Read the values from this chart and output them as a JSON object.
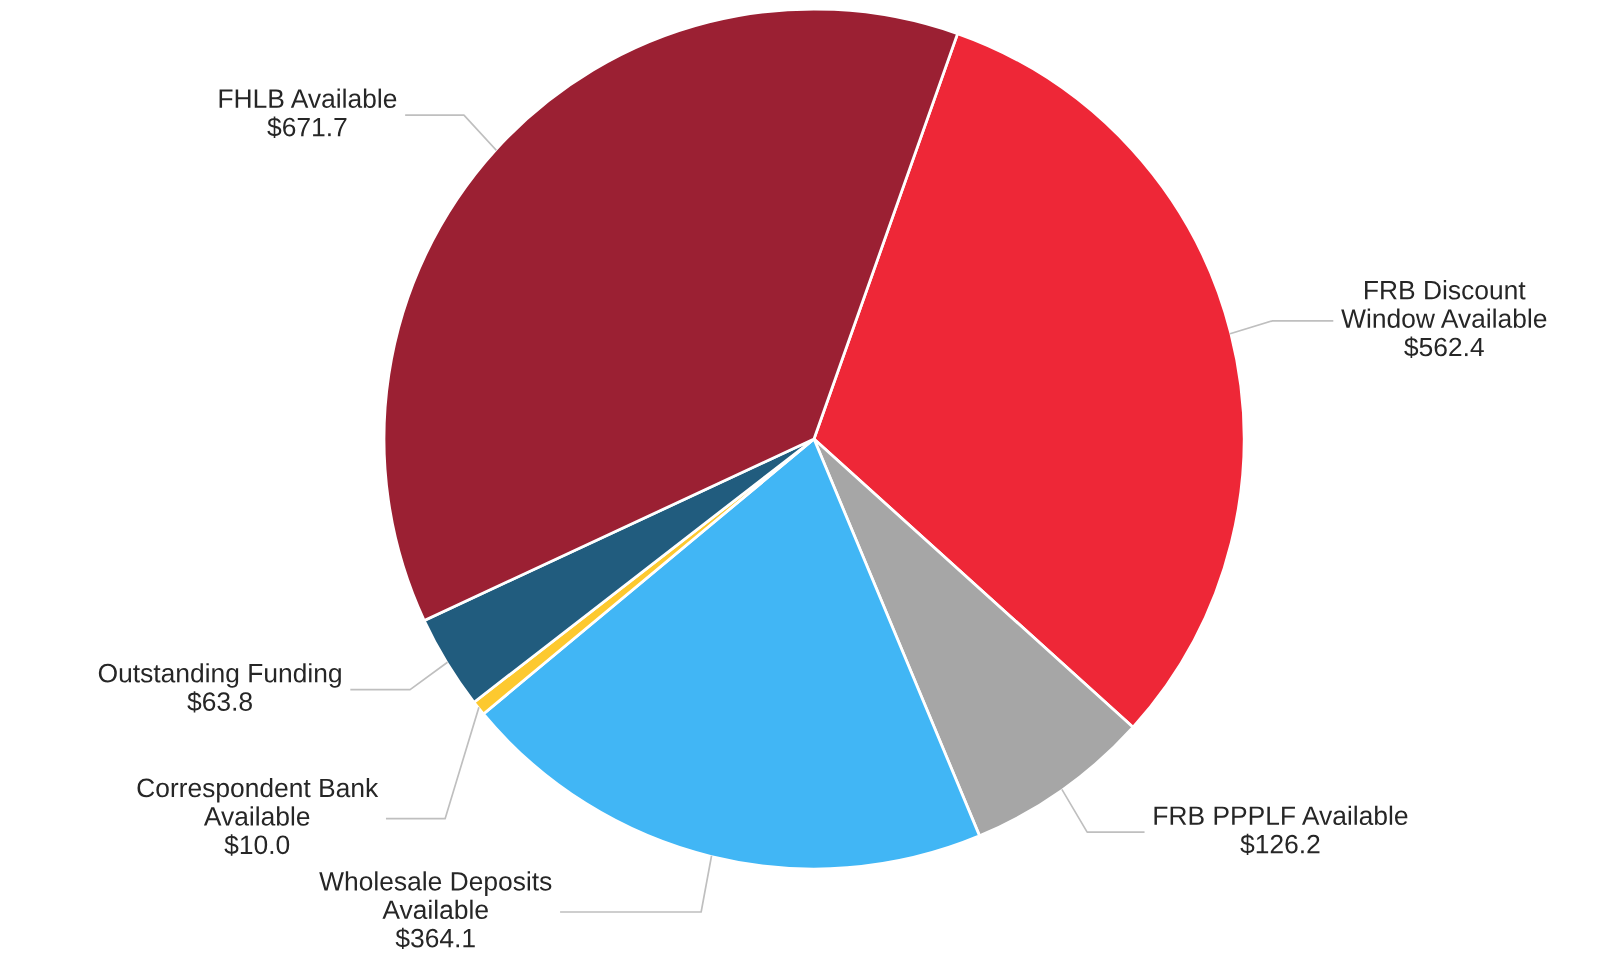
{
  "chart_data": {
    "type": "pie",
    "categories": [
      "FRB Discount\nWindow Available",
      "FRB PPPLF Available",
      "Wholesale Deposits\nAvailable",
      "Correspondent Bank\nAvailable",
      "Outstanding Funding",
      "FHLB Available"
    ],
    "values": [
      562.4,
      126.2,
      364.1,
      10.0,
      63.8,
      671.7
    ],
    "value_labels": [
      "$562.4",
      "$126.2",
      "$364.1",
      "$10.0",
      "$63.8",
      "$671.7"
    ],
    "colors": [
      "#ee2737",
      "#a6a6a6",
      "#41b6f5",
      "#fdc92f",
      "#215c7e",
      "#9b2033"
    ],
    "legend": false
  }
}
